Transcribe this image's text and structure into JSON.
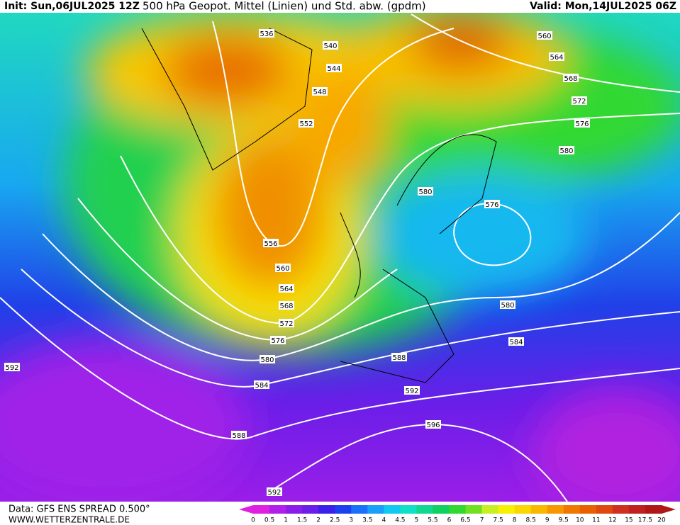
{
  "header": {
    "init": "Init: Sun,06JUL2025 12Z",
    "title": "500 hPa Geopot. Mittel (Linien) und Std. abw. (gpdm)",
    "valid": "Valid: Mon,14JUL2025 06Z"
  },
  "contour_labels": [
    536,
    540,
    544,
    548,
    552,
    556,
    560,
    564,
    568,
    572,
    576,
    580,
    584,
    588,
    592,
    592,
    560,
    564,
    568,
    572,
    576,
    580,
    580,
    576,
    580,
    584,
    588,
    592,
    596
  ],
  "legend": {
    "levels": [
      0,
      0.5,
      1,
      1.5,
      2,
      2.5,
      3,
      3.5,
      4,
      4.5,
      5,
      5.5,
      6,
      6.5,
      7,
      7.5,
      8,
      8.5,
      9,
      9.5,
      10,
      11,
      12,
      15,
      17.5,
      20
    ],
    "colors": [
      "#e020e0",
      "#b020e8",
      "#8a1ee8",
      "#6a1ee8",
      "#3a20e8",
      "#1a40f0",
      "#1a70f8",
      "#18a0f8",
      "#10c8f0",
      "#10e0c8",
      "#10d890",
      "#10d060",
      "#30d830",
      "#70e020",
      "#c8f020",
      "#f8f000",
      "#f8d800",
      "#f8b800",
      "#f89800",
      "#f07800",
      "#e86000",
      "#e04810",
      "#d03020",
      "#c02020",
      "#b01818"
    ]
  },
  "footer": {
    "source": "Data: GFS ENS SPREAD 0.500°",
    "site": "WWW.WETTERZENTRALE.DE"
  }
}
